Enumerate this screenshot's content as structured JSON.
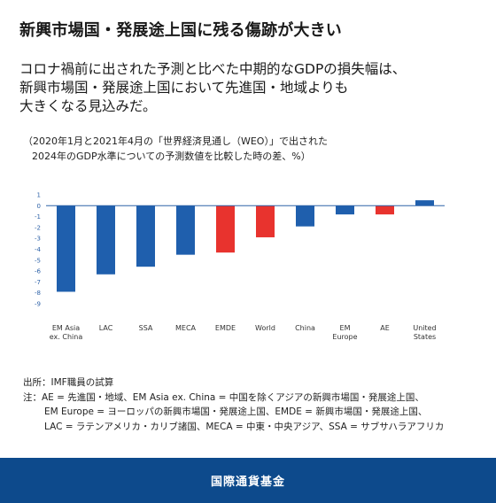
{
  "title": "新興市場国・発展途上国に残る傷跡が大きい",
  "subtitle_lines": [
    "コロナ禍前に出された予測と比べた中期的なGDPの損失幅は、",
    "新興市場国・発展途上国において先進国・地域よりも",
    "大きくなる見込みだ。"
  ],
  "caption_lines": [
    "（2020年1月と2021年4月の「世界経済見通し（WEO）」で出された",
    "2024年のGDP水準についての予測数値を比較した時の差、%）"
  ],
  "chart_data": {
    "type": "bar",
    "categories": [
      [
        "EM Asia",
        "ex. China"
      ],
      [
        "LAC"
      ],
      [
        "SSA"
      ],
      [
        "MECA"
      ],
      [
        "EMDE"
      ],
      [
        "World"
      ],
      [
        "China"
      ],
      [
        "EM",
        "Europe"
      ],
      [
        "AE"
      ],
      [
        "United",
        "States"
      ]
    ],
    "values": [
      -7.9,
      -6.3,
      -5.6,
      -4.5,
      -4.3,
      -2.9,
      -1.9,
      -0.8,
      -0.8,
      0.5
    ],
    "bar_colors": [
      "#1f5fad",
      "#1f5fad",
      "#1f5fad",
      "#1f5fad",
      "#e8332e",
      "#e8332e",
      "#1f5fad",
      "#1f5fad",
      "#e8332e",
      "#1f5fad"
    ],
    "yticks": [
      "1",
      "0",
      "-1",
      "-2",
      "-3",
      "-4",
      "-5",
      "-6",
      "-7",
      "-8",
      "-9"
    ],
    "ylim": [
      -9,
      1
    ],
    "grid": false
  },
  "source": "出所：IMF職員の試算",
  "notes": [
    "注：AE = 先進国・地域、EM Asia ex. China = 中国を除くアジアの新興市場国・発展途上国、",
    "EM Europe = ヨーロッパの新興市場国・発展途上国、EMDE = 新興市場国・発展途上国、",
    "LAC = ラテンアメリカ・カリブ諸国、MECA = 中東・中央アジア、SSA = サブサハラアフリカ"
  ],
  "footer": "国際通貨基金",
  "colors": {
    "blue": "#1f5fad",
    "red": "#e8332e",
    "footer_bg": "#0d4a8c",
    "axis": "#2f63a8"
  }
}
